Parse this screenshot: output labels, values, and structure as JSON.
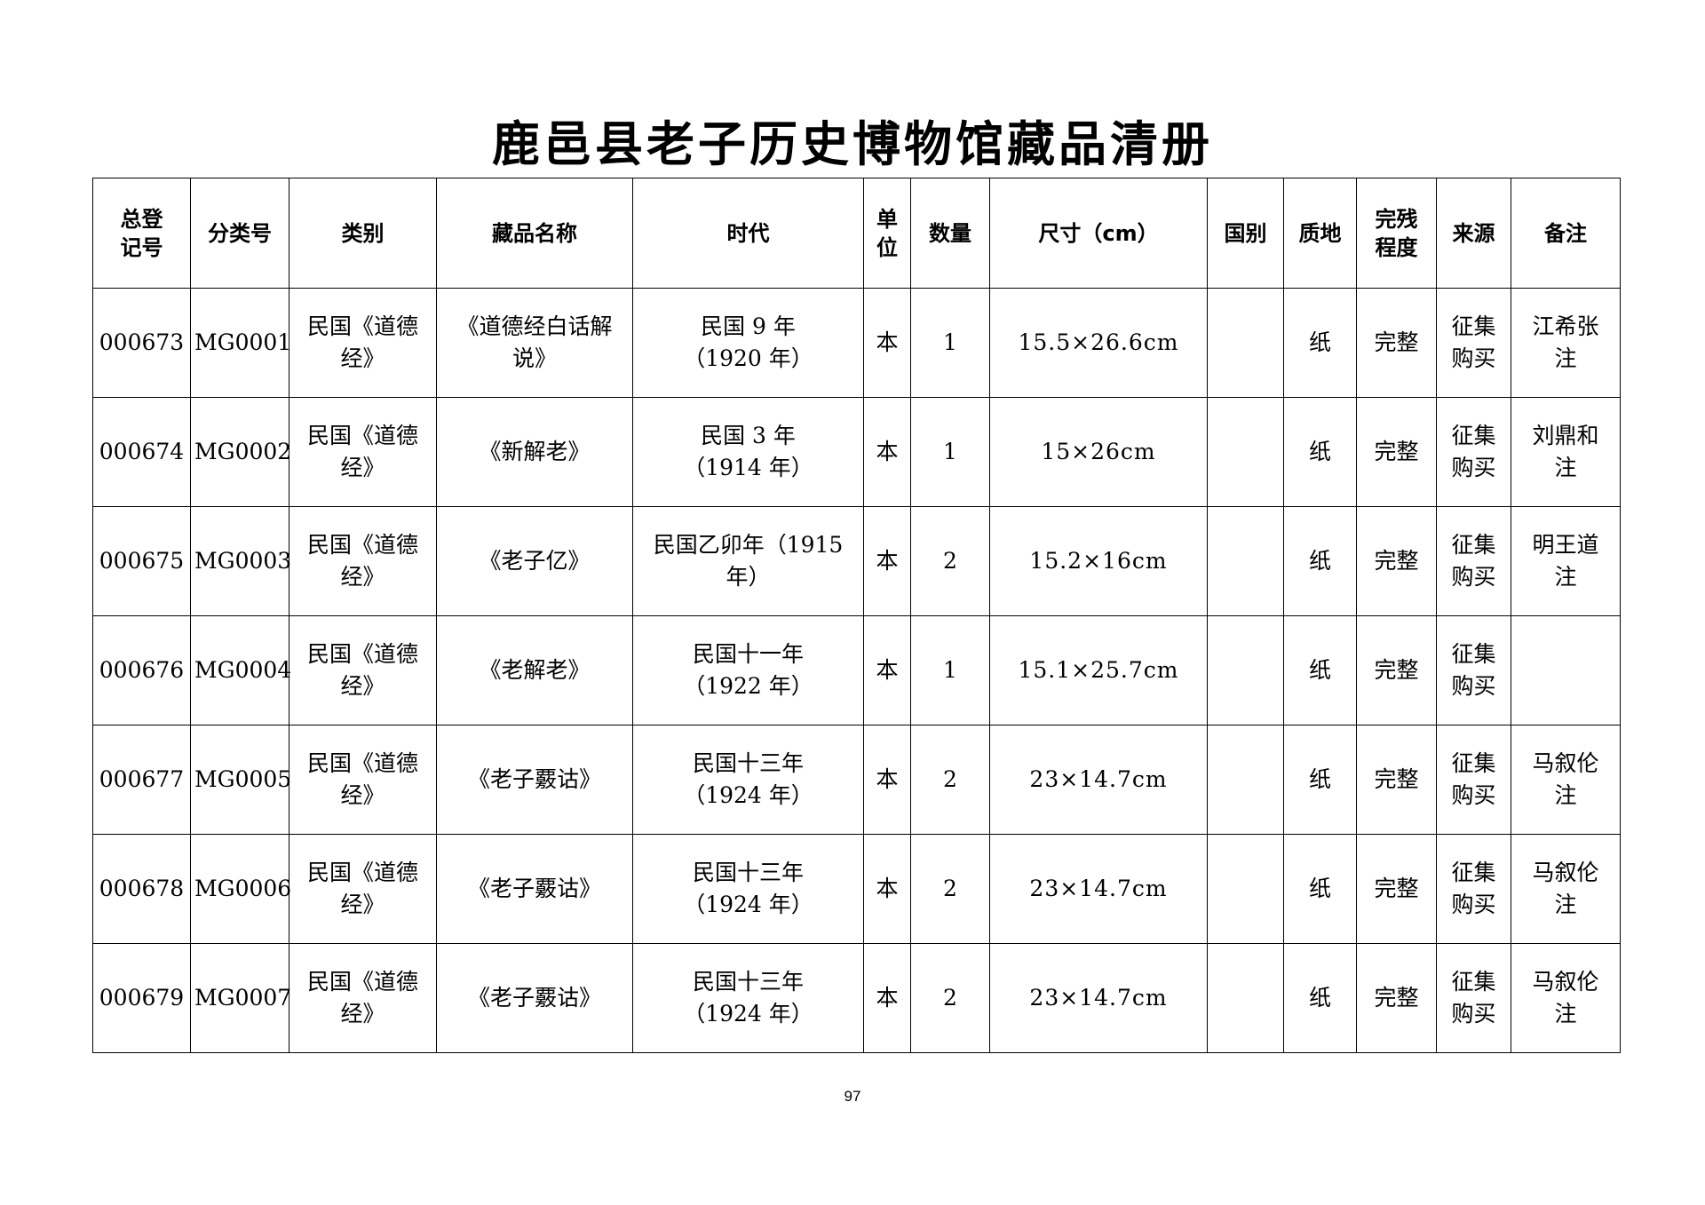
{
  "title": "鹿邑县老子历史博物馆藏品清册",
  "headers": {
    "reg_no": "总登\n记号",
    "class_no": "分类号",
    "category": "类别",
    "name": "藏品名称",
    "era": "时代",
    "unit": "单\n位",
    "qty": "数量",
    "size": "尺寸（cm）",
    "country": "国别",
    "material": "质地",
    "condition": "完残\n程度",
    "source": "来源",
    "remark": "备注"
  },
  "rows": [
    {
      "reg_no": "000673",
      "class_no": "MG0001",
      "category": "民国《道德\n经》",
      "name": "《道德经白话解\n说》",
      "era": "民国 9 年\n（1920 年）",
      "unit": "本",
      "qty": "1",
      "size": "15.5×26.6cm",
      "country": "",
      "material": "纸",
      "condition": "完整",
      "source": "征集\n购买",
      "remark": "江希张\n注"
    },
    {
      "reg_no": "000674",
      "class_no": "MG0002",
      "category": "民国《道德\n经》",
      "name": "《新解老》",
      "era": "民国 3 年\n（1914 年）",
      "unit": "本",
      "qty": "1",
      "size": "15×26cm",
      "country": "",
      "material": "纸",
      "condition": "完整",
      "source": "征集\n购买",
      "remark": "刘鼎和\n注"
    },
    {
      "reg_no": "000675",
      "class_no": "MG0003",
      "category": "民国《道德\n经》",
      "name": "《老子亿》",
      "era": "民国乙卯年（1915\n年）",
      "unit": "本",
      "qty": "2",
      "size": "15.2×16cm",
      "country": "",
      "material": "纸",
      "condition": "完整",
      "source": "征集\n购买",
      "remark": "明王道\n注"
    },
    {
      "reg_no": "000676",
      "class_no": "MG0004",
      "category": "民国《道德\n经》",
      "name": "《老解老》",
      "era": "民国十一年\n（1922 年）",
      "unit": "本",
      "qty": "1",
      "size": "15.1×25.7cm",
      "country": "",
      "material": "纸",
      "condition": "完整",
      "source": "征集\n购买",
      "remark": ""
    },
    {
      "reg_no": "000677",
      "class_no": "MG0005",
      "category": "民国《道德\n经》",
      "name": "《老子覈诂》",
      "era": "民国十三年\n（1924 年）",
      "unit": "本",
      "qty": "2",
      "size": "23×14.7cm",
      "country": "",
      "material": "纸",
      "condition": "完整",
      "source": "征集\n购买",
      "remark": "马叙伦\n注"
    },
    {
      "reg_no": "000678",
      "class_no": "MG0006",
      "category": "民国《道德\n经》",
      "name": "《老子覈诂》",
      "era": "民国十三年\n（1924 年）",
      "unit": "本",
      "qty": "2",
      "size": "23×14.7cm",
      "country": "",
      "material": "纸",
      "condition": "完整",
      "source": "征集\n购买",
      "remark": "马叙伦\n注"
    },
    {
      "reg_no": "000679",
      "class_no": "MG0007",
      "category": "民国《道德\n经》",
      "name": "《老子覈诂》",
      "era": "民国十三年\n（1924 年）",
      "unit": "本",
      "qty": "2",
      "size": "23×14.7cm",
      "country": "",
      "material": "纸",
      "condition": "完整",
      "source": "征集\n购买",
      "remark": "马叙伦\n注"
    }
  ],
  "page_number": "97"
}
